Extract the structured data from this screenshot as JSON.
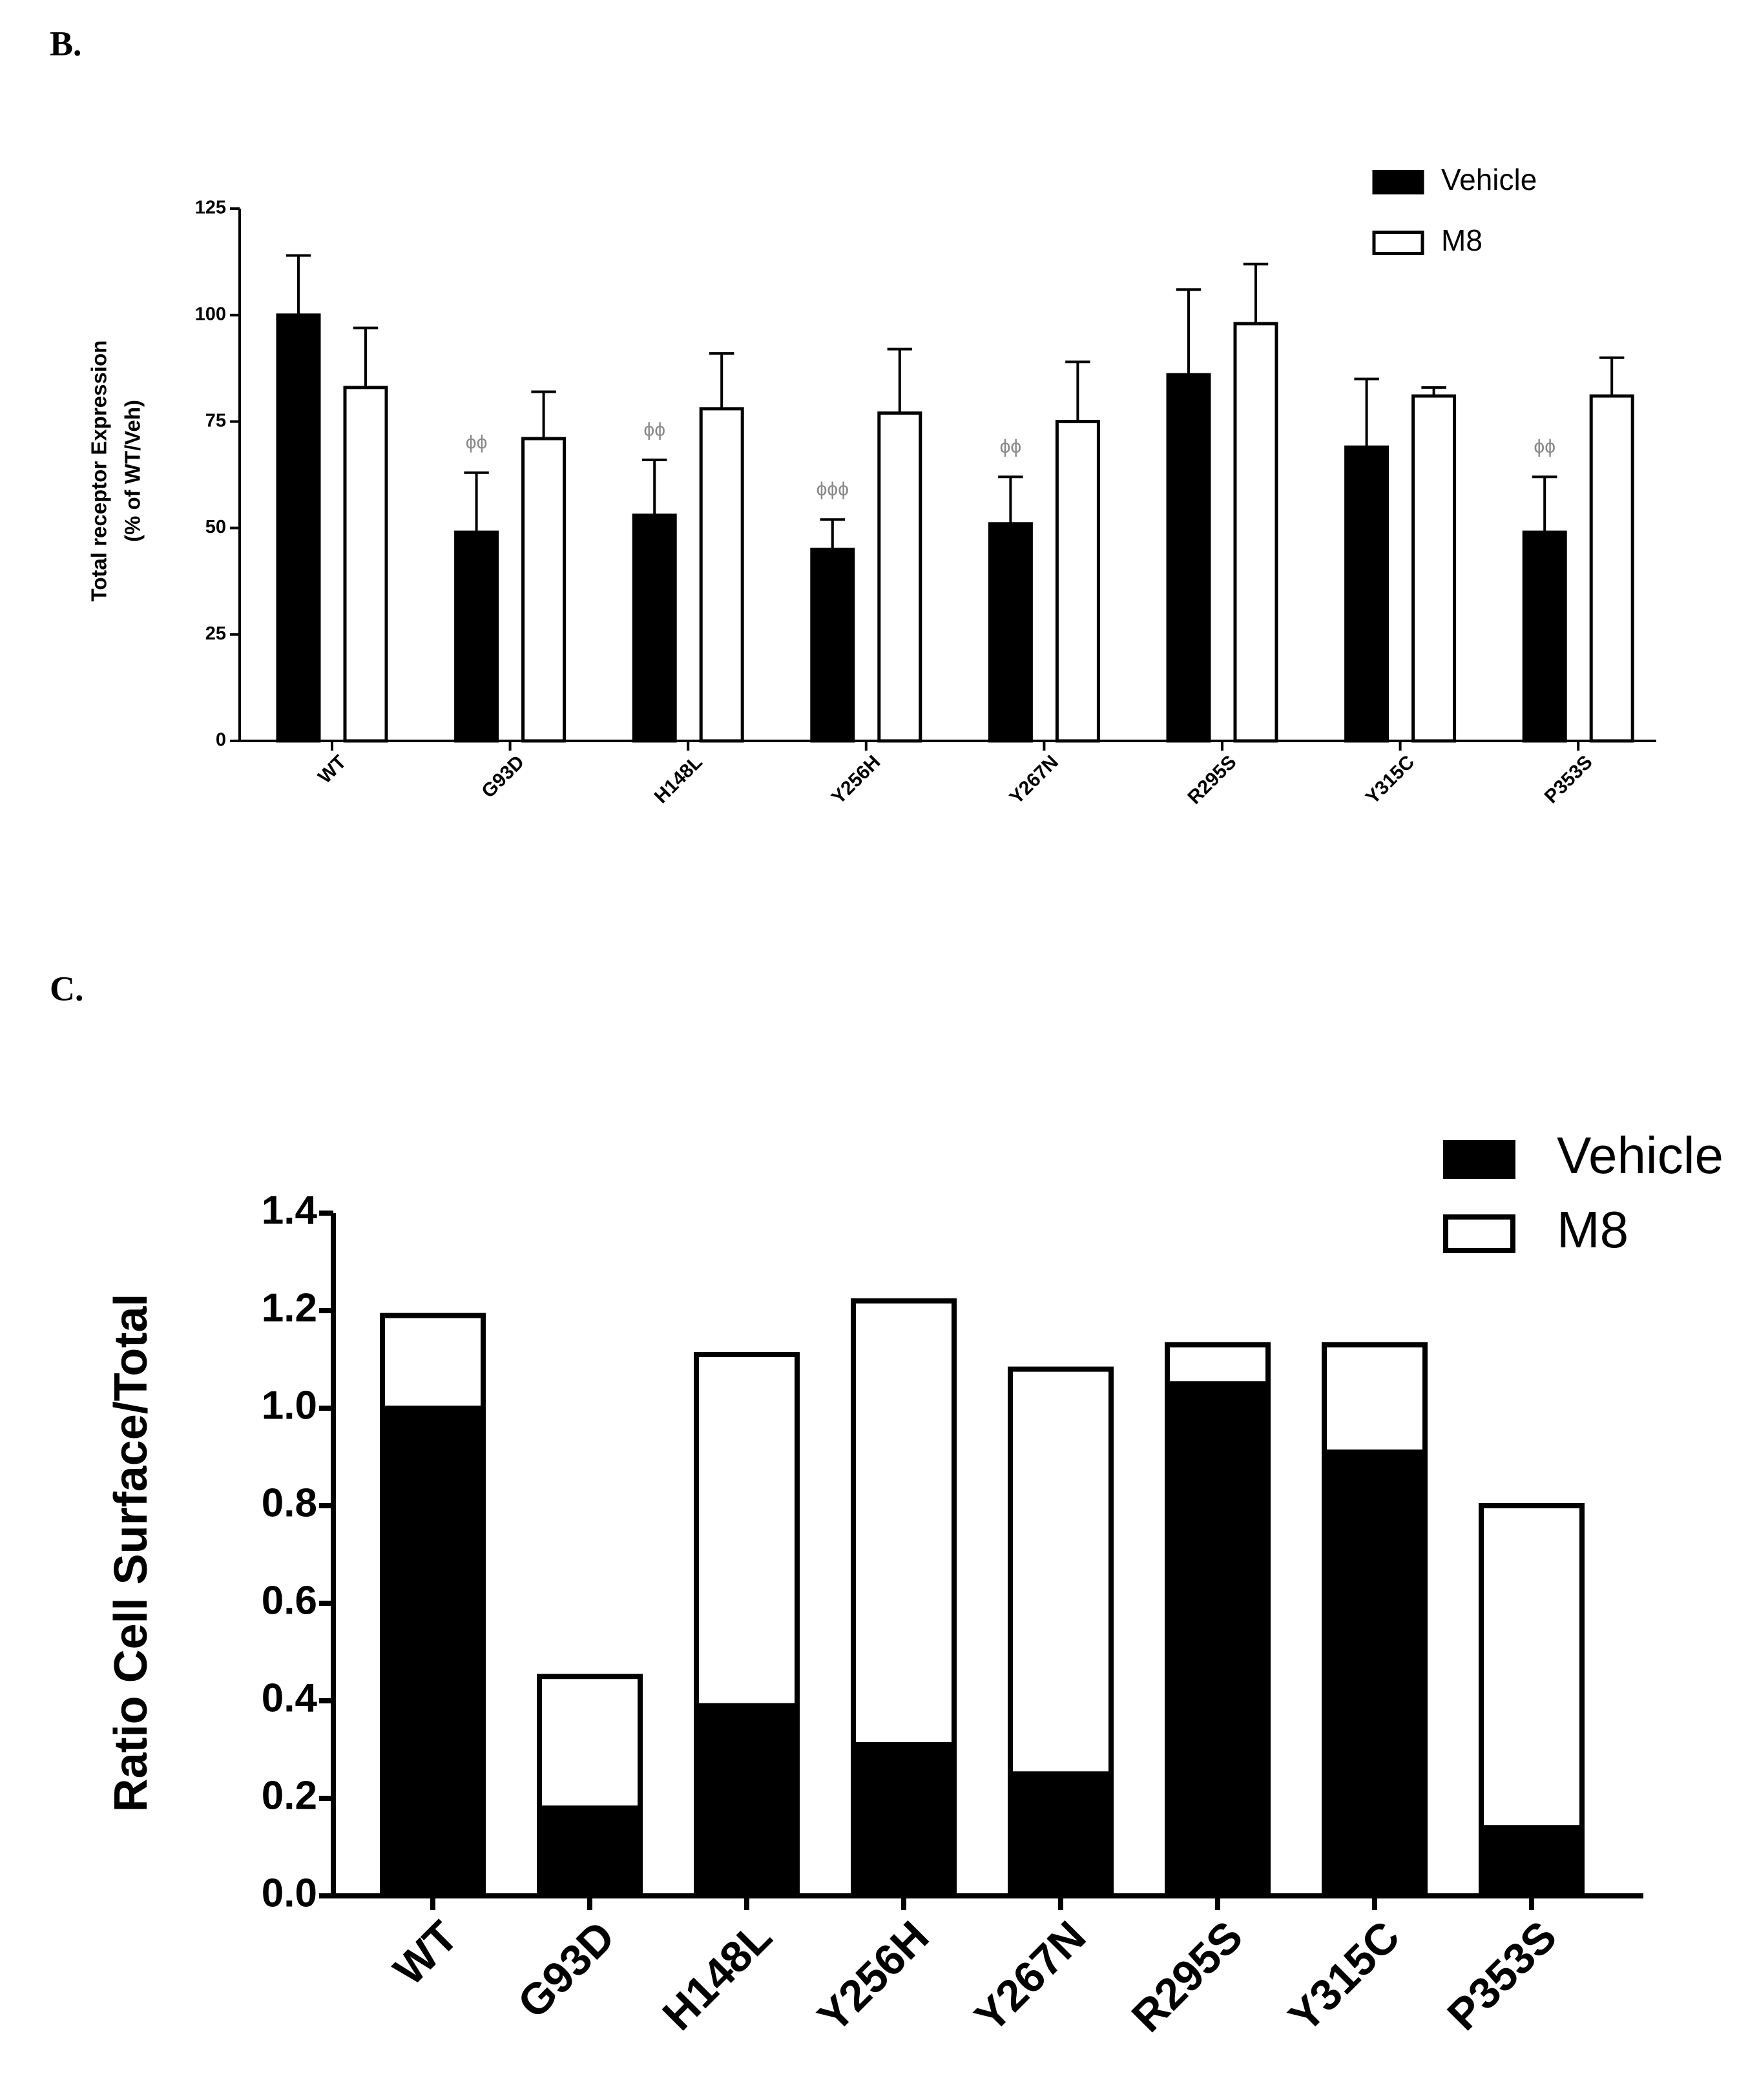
{
  "chart_data": [
    {
      "type": "bar",
      "barmode": "group",
      "panel_label": "B.",
      "ylabel": [
        "Total receptor Expression",
        "(% of WT/Veh)"
      ],
      "categories": [
        "WT",
        "G93D",
        "H148L",
        "Y256H",
        "Y267N",
        "R295S",
        "Y315C",
        "P353S"
      ],
      "series": [
        {
          "name": "Vehicle",
          "color": "#000000",
          "values": [
            100,
            49,
            53,
            45,
            51,
            86,
            69,
            49
          ],
          "errors": [
            14,
            14,
            13,
            7,
            11,
            20,
            16,
            13
          ]
        },
        {
          "name": "M8",
          "color": "#ffffff",
          "values": [
            83,
            71,
            78,
            77,
            75,
            98,
            81,
            81
          ],
          "errors": [
            14,
            11,
            13,
            15,
            14,
            14,
            2,
            9
          ]
        }
      ],
      "significance": [
        null,
        "ϕϕ",
        "ϕϕ",
        "ϕϕϕ",
        "ϕϕ",
        null,
        null,
        "ϕϕ"
      ],
      "ylim": [
        0,
        125
      ],
      "yticks": [
        0,
        25,
        50,
        75,
        100,
        125
      ],
      "legend": "top-right"
    },
    {
      "type": "bar",
      "barmode": "overlay",
      "panel_label": "C.",
      "ylabel": [
        "Ratio Cell Surface/Total"
      ],
      "categories": [
        "WT",
        "G93D",
        "H148L",
        "Y256H",
        "Y267N",
        "R295S",
        "Y315C",
        "P353S"
      ],
      "series": [
        {
          "name": "Vehicle",
          "color": "#000000",
          "values": [
            1.0,
            0.18,
            0.39,
            0.31,
            0.25,
            1.05,
            0.91,
            0.14
          ]
        },
        {
          "name": "M8",
          "color": "#ffffff",
          "values": [
            1.19,
            0.45,
            1.11,
            1.22,
            1.08,
            1.13,
            1.13,
            0.8
          ]
        }
      ],
      "ylim": [
        0,
        1.4
      ],
      "yticks": [
        {
          "value": 0,
          "label": "0.0"
        },
        {
          "value": 0.2,
          "label": "0.2"
        },
        {
          "value": 0.4,
          "label": "0.4"
        },
        {
          "value": 0.6,
          "label": "0.6"
        },
        {
          "value": 0.8,
          "label": "0.8"
        },
        {
          "value": 1.0,
          "label": "1.0"
        },
        {
          "value": 1.2,
          "label": "1.2"
        },
        {
          "value": 1.4,
          "label": "1.4"
        }
      ],
      "legend": "top-right"
    }
  ]
}
